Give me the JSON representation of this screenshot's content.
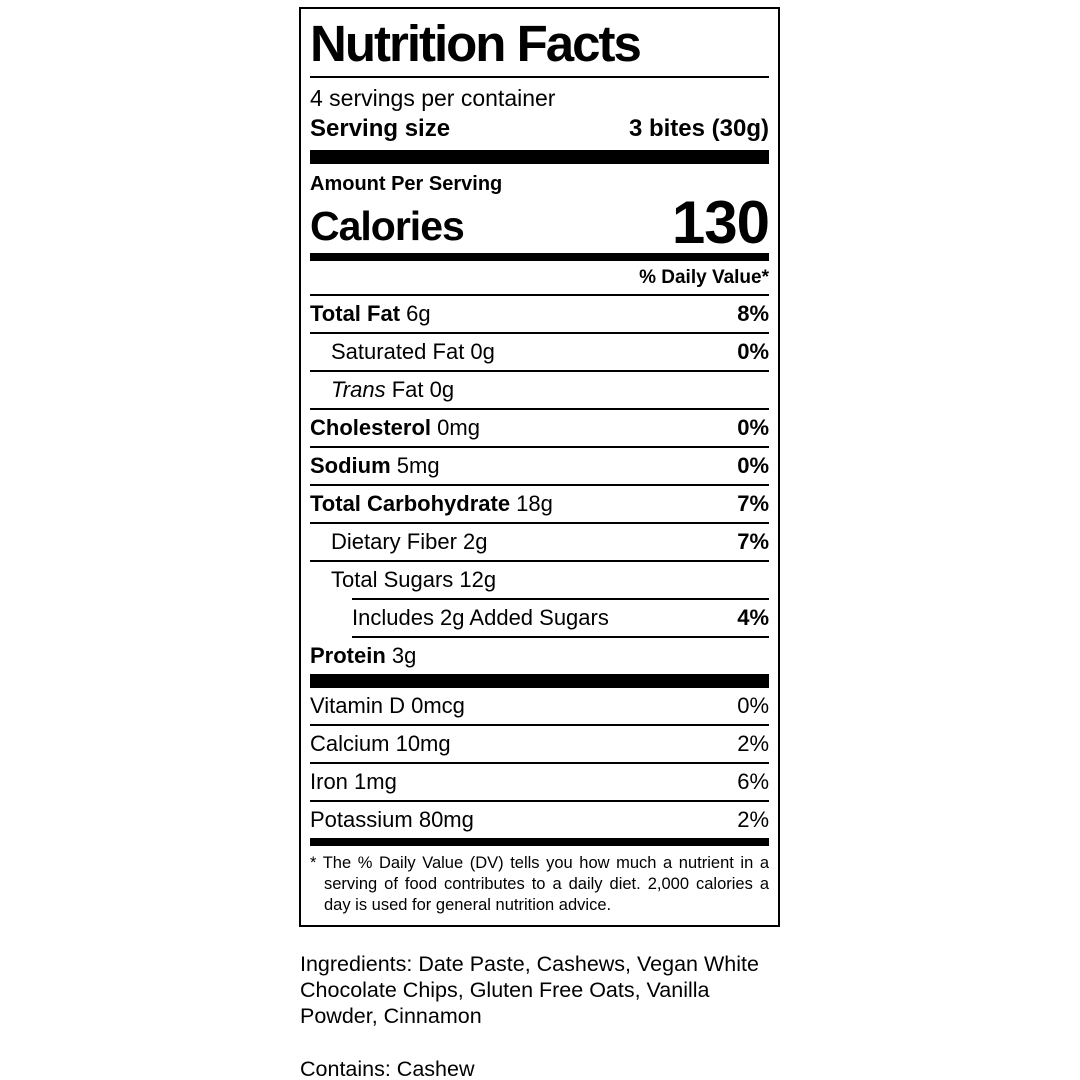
{
  "colors": {
    "text": "#000000",
    "background": "#ffffff"
  },
  "label": {
    "title": "Nutrition Facts",
    "servings_per_container": "4 servings per container",
    "serving_size_label": "Serving size",
    "serving_size_value": "3 bites (30g)",
    "amount_per_serving": "Amount Per Serving",
    "calories_label": "Calories",
    "calories_value": "130",
    "daily_value_header": "% Daily Value*",
    "nutrients": [
      {
        "name": "Total Fat",
        "value": "6g",
        "dv": "8%",
        "bold_name": true,
        "indent": 0
      },
      {
        "name": "Saturated Fat",
        "value": "0g",
        "dv": "0%",
        "bold_name": false,
        "indent": 1
      },
      {
        "name": "Trans Fat",
        "value": "0g",
        "dv": "",
        "bold_name": false,
        "indent": 1,
        "italic_first_word": true
      },
      {
        "name": "Cholesterol",
        "value": "0mg",
        "dv": "0%",
        "bold_name": true,
        "indent": 0
      },
      {
        "name": "Sodium",
        "value": "5mg",
        "dv": "0%",
        "bold_name": true,
        "indent": 0
      },
      {
        "name": "Total Carbohydrate",
        "value": "18g",
        "dv": "7%",
        "bold_name": true,
        "indent": 0
      },
      {
        "name": "Dietary Fiber",
        "value": "2g",
        "dv": "7%",
        "bold_name": false,
        "indent": 1
      },
      {
        "name": "Total Sugars",
        "value": "12g",
        "dv": "",
        "bold_name": false,
        "indent": 1,
        "no_bottom_rule": true
      },
      {
        "name": "Includes 2g Added Sugars",
        "value": "",
        "dv": "4%",
        "bold_name": false,
        "indent": 2,
        "indented_top_rule": true
      },
      {
        "name": "Protein",
        "value": "3g",
        "dv": "",
        "bold_name": true,
        "indent": 0,
        "no_bottom_rule": true
      }
    ],
    "micronutrients": [
      {
        "name": "Vitamin D",
        "value": "0mcg",
        "dv": "0%"
      },
      {
        "name": "Calcium",
        "value": "10mg",
        "dv": "2%"
      },
      {
        "name": "Iron",
        "value": "1mg",
        "dv": "6%"
      },
      {
        "name": "Potassium",
        "value": "80mg",
        "dv": "2%"
      }
    ],
    "footnote_marker": "*",
    "footnote": "The % Daily Value (DV) tells you how much a nutrient in a serving of food contributes to a daily diet. 2,000 calories a day is used for general nutrition advice."
  },
  "below_label": {
    "ingredients": "Ingredients: Date Paste, Cashews, Vegan White Chocolate Chips, Gluten Free Oats, Vanilla Powder, Cinnamon",
    "contains": "Contains: Cashew"
  }
}
